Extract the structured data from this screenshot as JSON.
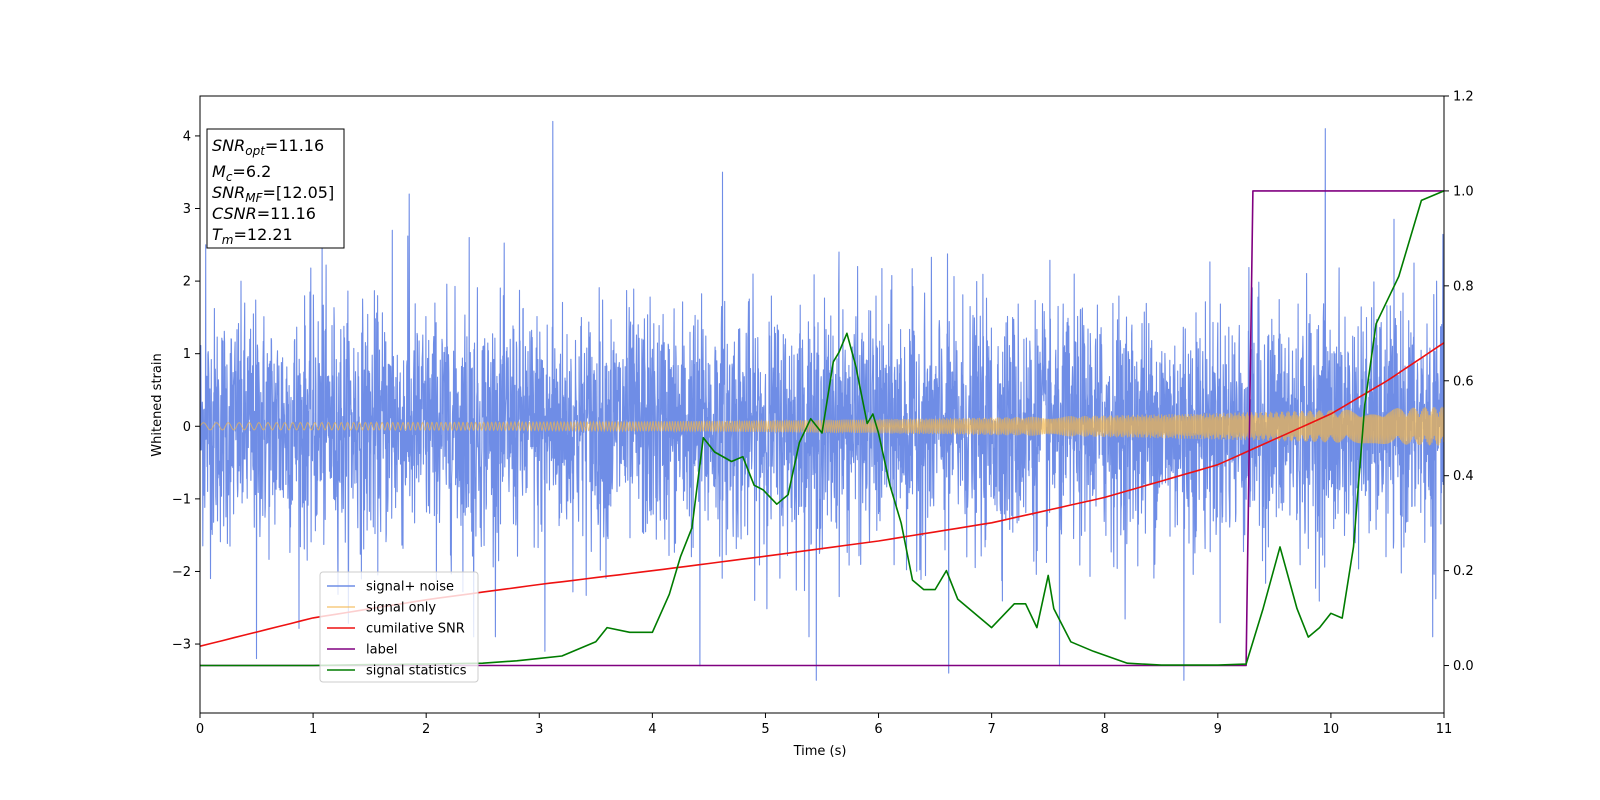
{
  "chart_data": {
    "type": "line",
    "xlabel": "Time (s)",
    "ylabel": "Whitened strain",
    "xlim": [
      0,
      11
    ],
    "ylim": [
      -3.95,
      4.55
    ],
    "y2lim": [
      -0.1,
      1.2
    ],
    "x_ticks": [
      "0",
      "1",
      "2",
      "3",
      "4",
      "5",
      "6",
      "7",
      "8",
      "9",
      "10",
      "11"
    ],
    "y_ticks": [
      "−3",
      "−2",
      "−1",
      "0",
      "1",
      "2",
      "3",
      "4"
    ],
    "y2_ticks": [
      "0.0",
      "0.2",
      "0.4",
      "0.6",
      "0.8",
      "1.0",
      "1.2"
    ],
    "grid": false,
    "legend_position": "lower-left",
    "annotation": {
      "lines": [
        {
          "base": "SNR",
          "sub": "opt",
          "value": "=11.16"
        },
        {
          "base": "M",
          "sub": "c",
          "value": "=6.2"
        },
        {
          "base": "SNR",
          "sub": "MF",
          "value": "=[12.05]"
        },
        {
          "base": "CSNR",
          "sub": "",
          "value": "=11.16"
        },
        {
          "base": "T",
          "sub": "m",
          "value": "=12.21"
        }
      ]
    },
    "series": [
      {
        "name": "signal+ noise",
        "color": "#6f8de6",
        "axis": "left",
        "style": "dense-noise",
        "envelope_sigma": 0.8,
        "peaks": [
          [
            0.05,
            2.5
          ],
          [
            0.5,
            -3.2
          ],
          [
            1.08,
            2.5
          ],
          [
            1.7,
            2.7
          ],
          [
            1.85,
            3.2
          ],
          [
            2.38,
            2.6
          ],
          [
            2.42,
            -2.9
          ],
          [
            3.12,
            4.2
          ],
          [
            3.05,
            -3.1
          ],
          [
            4.62,
            3.5
          ],
          [
            4.42,
            -3.3
          ],
          [
            5.45,
            -3.5
          ],
          [
            5.65,
            2.4
          ],
          [
            6.62,
            -3.4
          ],
          [
            7.6,
            -3.3
          ],
          [
            8.7,
            -3.5
          ],
          [
            9.95,
            4.1
          ],
          [
            10.9,
            -2.9
          ]
        ]
      },
      {
        "name": "signal only",
        "color": "#f4b64a",
        "axis": "left",
        "style": "chirp",
        "amplitude_start": 0.05,
        "amplitude_end": 0.27
      },
      {
        "name": "cumilative SNR",
        "color": "#ee1111",
        "axis": "left",
        "x": [
          0,
          1,
          2,
          3,
          4,
          5,
          6,
          7,
          8,
          9,
          10,
          10.5,
          11
        ],
        "y": [
          -3.03,
          -2.64,
          -2.39,
          -2.18,
          -1.99,
          -1.79,
          -1.58,
          -1.33,
          -0.98,
          -0.53,
          0.17,
          0.63,
          1.15
        ]
      },
      {
        "name": "label",
        "color": "#800080",
        "axis": "right",
        "x": [
          0,
          9.25,
          9.31,
          11
        ],
        "y": [
          0,
          0,
          1,
          1
        ]
      },
      {
        "name": "signal statistics",
        "color": "#007c00",
        "axis": "right",
        "x": [
          0,
          0.5,
          1.0,
          1.5,
          2.0,
          2.5,
          2.8,
          3.0,
          3.2,
          3.5,
          3.6,
          3.8,
          4.0,
          4.15,
          4.25,
          4.35,
          4.45,
          4.55,
          4.7,
          4.8,
          4.9,
          4.98,
          5.1,
          5.2,
          5.3,
          5.4,
          5.5,
          5.6,
          5.65,
          5.72,
          5.8,
          5.9,
          5.95,
          6.0,
          6.1,
          6.2,
          6.3,
          6.4,
          6.5,
          6.6,
          6.7,
          6.8,
          7.0,
          7.2,
          7.3,
          7.4,
          7.5,
          7.55,
          7.7,
          7.9,
          8.2,
          8.5,
          9.0,
          9.25,
          9.4,
          9.55,
          9.7,
          9.8,
          9.9,
          10.0,
          10.1,
          10.2,
          10.3,
          10.4,
          10.6,
          10.8,
          11.0
        ],
        "y": [
          0,
          0,
          0,
          0.002,
          0.003,
          0.005,
          0.01,
          0.015,
          0.02,
          0.05,
          0.08,
          0.07,
          0.07,
          0.15,
          0.23,
          0.29,
          0.48,
          0.45,
          0.43,
          0.44,
          0.38,
          0.37,
          0.34,
          0.36,
          0.47,
          0.52,
          0.49,
          0.64,
          0.66,
          0.7,
          0.63,
          0.51,
          0.53,
          0.49,
          0.38,
          0.3,
          0.18,
          0.16,
          0.16,
          0.2,
          0.14,
          0.12,
          0.08,
          0.13,
          0.13,
          0.08,
          0.19,
          0.12,
          0.05,
          0.03,
          0.005,
          0.001,
          0.001,
          0.003,
          0.12,
          0.25,
          0.12,
          0.06,
          0.08,
          0.11,
          0.1,
          0.25,
          0.55,
          0.72,
          0.82,
          0.98,
          1.0
        ]
      }
    ]
  }
}
